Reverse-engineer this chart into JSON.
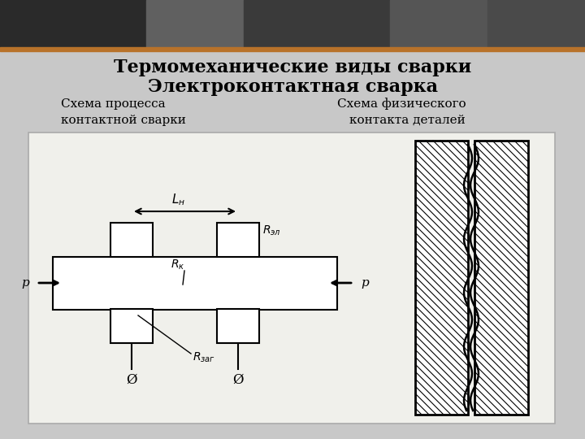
{
  "title_line1": "Термомеханические виды сварки",
  "title_line2": "Электроконтактная сварка",
  "subtitle_left_line1": "Схема процесса",
  "subtitle_left_line2": "контактной сварки",
  "subtitle_right_line1": "Схема физического",
  "subtitle_right_line2": "контакта деталей",
  "bg_top_color": "#555555",
  "bg_main_color": "#c8c8c8",
  "header_stripe_color": "#b8722a",
  "diagram_box_color": "#f0f0eb"
}
